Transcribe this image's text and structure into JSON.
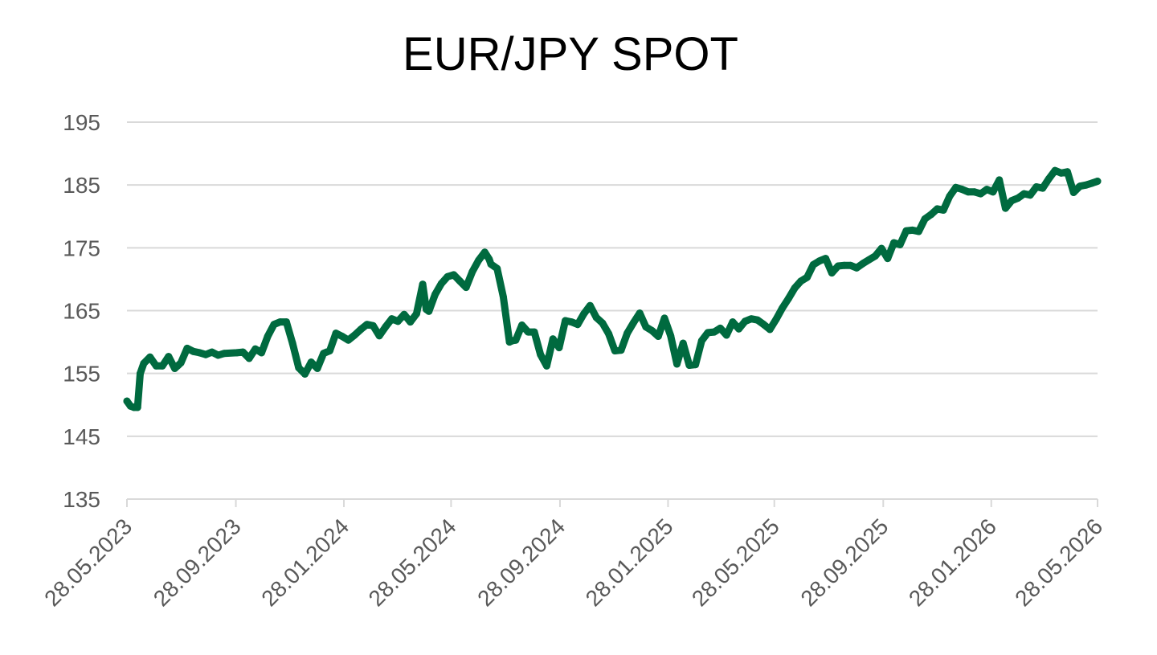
{
  "chart_data": {
    "type": "line",
    "title": "EUR/JPY SPOT",
    "xlabel": "",
    "ylabel": "",
    "ylim": [
      135,
      195
    ],
    "y_ticks": [
      "195",
      "185",
      "175",
      "165",
      "155",
      "145",
      "135"
    ],
    "x_ticks": [
      "28.05.2023",
      "28.09.2023",
      "28.01.2024",
      "28.05.2024",
      "28.09.2024",
      "28.01.2025",
      "28.05.2025",
      "28.09.2025",
      "28.01.2026",
      "28.05.2026"
    ],
    "grid": true,
    "legend": "none",
    "line_color": "#006a3f",
    "series": [
      {
        "x": [
          "2023-05-28",
          "2023-06-01",
          "2023-06-05",
          "2023-06-09",
          "2023-06-12",
          "2023-06-16",
          "2023-06-23",
          "2023-06-30",
          "2023-07-07",
          "2023-07-14",
          "2023-07-21",
          "2023-07-25",
          "2023-07-28",
          "2023-08-04",
          "2023-08-11",
          "2023-08-18",
          "2023-08-25",
          "2023-09-01",
          "2023-09-08",
          "2023-09-15",
          "2023-09-29",
          "2023-10-06",
          "2023-10-13",
          "2023-10-20",
          "2023-10-27",
          "2023-11-03",
          "2023-11-10",
          "2023-11-17",
          "2023-11-24",
          "2023-12-01",
          "2023-12-08",
          "2023-12-15",
          "2023-12-22",
          "2023-12-29",
          "2024-01-05",
          "2024-01-12",
          "2024-01-19",
          "2024-01-26",
          "2024-02-02",
          "2024-02-09",
          "2024-02-16",
          "2024-02-23",
          "2024-03-01",
          "2024-03-08",
          "2024-03-15",
          "2024-03-22",
          "2024-03-29",
          "2024-04-05",
          "2024-04-12",
          "2024-04-19",
          "2024-04-26",
          "2024-04-30",
          "2024-05-03",
          "2024-05-10",
          "2024-05-17",
          "2024-05-24",
          "2024-05-31",
          "2024-06-07",
          "2024-06-14",
          "2024-06-21",
          "2024-06-28",
          "2024-07-05",
          "2024-07-10",
          "2024-07-12",
          "2024-07-19",
          "2024-07-26",
          "2024-08-02",
          "2024-08-05",
          "2024-08-09",
          "2024-08-16",
          "2024-08-23",
          "2024-08-30",
          "2024-09-06",
          "2024-09-13",
          "2024-09-20",
          "2024-09-27",
          "2024-10-04",
          "2024-10-11",
          "2024-10-18",
          "2024-10-25",
          "2024-11-01",
          "2024-11-08",
          "2024-11-15",
          "2024-11-22",
          "2024-11-29",
          "2024-12-06",
          "2024-12-13",
          "2024-12-20",
          "2024-12-27",
          "2025-01-03",
          "2025-01-10",
          "2025-01-17",
          "2025-01-24",
          "2025-01-31",
          "2025-02-07",
          "2025-02-14",
          "2025-02-21",
          "2025-02-28",
          "2025-03-07",
          "2025-03-14",
          "2025-03-21",
          "2025-03-28",
          "2025-04-04",
          "2025-04-11",
          "2025-04-18",
          "2025-04-25",
          "2025-05-02",
          "2025-05-09",
          "2025-05-16",
          "2025-05-23",
          "2025-05-30",
          "2025-06-06",
          "2025-06-13",
          "2025-06-20",
          "2025-06-27",
          "2025-07-04",
          "2025-07-11",
          "2025-07-18",
          "2025-07-25",
          "2025-08-01",
          "2025-08-08",
          "2025-08-15",
          "2025-08-22",
          "2025-08-29",
          "2025-09-05",
          "2025-09-12",
          "2025-09-19",
          "2025-09-26",
          "2025-10-03",
          "2025-10-10",
          "2025-10-17",
          "2025-10-24",
          "2025-10-31",
          "2025-11-07",
          "2025-11-14",
          "2025-11-21",
          "2025-11-28",
          "2025-12-05",
          "2025-12-12",
          "2025-12-19",
          "2025-12-26",
          "2026-01-02",
          "2026-01-09",
          "2026-01-16",
          "2026-01-23",
          "2026-01-30",
          "2026-02-06",
          "2026-02-13",
          "2026-02-20",
          "2026-02-27",
          "2026-03-06",
          "2026-03-13",
          "2026-03-20",
          "2026-03-27",
          "2026-04-03",
          "2026-04-10",
          "2026-04-17",
          "2026-04-24",
          "2026-05-01",
          "2026-05-08",
          "2026-05-15",
          "2026-05-22",
          "2026-05-28"
        ],
        "y": [
          150.6,
          149.8,
          149.6,
          149.6,
          155.0,
          156.6,
          157.6,
          156.2,
          156.2,
          157.7,
          155.8,
          156.3,
          156.7,
          159.0,
          158.5,
          158.3,
          158.0,
          158.4,
          157.9,
          158.2,
          158.3,
          158.4,
          157.4,
          158.9,
          158.3,
          160.9,
          162.8,
          163.2,
          163.2,
          159.8,
          155.9,
          154.9,
          156.8,
          155.8,
          158.2,
          158.6,
          161.4,
          160.9,
          160.3,
          161.1,
          162.0,
          162.8,
          162.6,
          161.0,
          162.4,
          163.7,
          163.3,
          164.4,
          163.2,
          164.5,
          169.2,
          165.2,
          164.9,
          167.6,
          169.3,
          170.4,
          170.7,
          169.7,
          168.7,
          171.2,
          173.0,
          174.3,
          173.2,
          172.4,
          171.7,
          167.2,
          160.0,
          160.2,
          160.3,
          162.7,
          161.6,
          161.6,
          158.0,
          156.2,
          160.5,
          159.1,
          163.4,
          163.2,
          162.8,
          164.5,
          165.8,
          163.9,
          163.0,
          161.3,
          158.6,
          158.7,
          161.4,
          163.1,
          164.6,
          162.4,
          161.8,
          160.9,
          163.8,
          161.0,
          156.5,
          159.8,
          156.3,
          156.4,
          160.2,
          161.5,
          161.6,
          162.2,
          161.1,
          163.2,
          162.1,
          163.3,
          163.7,
          163.5,
          162.8,
          162.0,
          163.6,
          165.4,
          166.9,
          168.6,
          169.7,
          170.3,
          172.3,
          172.9,
          173.3,
          171.0,
          172.1,
          172.2,
          172.2,
          171.8,
          172.5,
          173.1,
          173.7,
          174.9,
          173.3,
          175.8,
          175.5,
          177.7,
          177.8,
          177.6,
          179.6,
          180.3,
          181.2,
          181.0,
          183.2,
          184.6,
          184.3,
          183.9,
          183.9,
          183.6,
          184.3,
          183.9,
          185.8,
          181.3,
          182.5,
          182.9,
          183.6,
          183.4,
          184.7,
          184.5,
          186.0,
          187.3,
          186.9,
          187.1,
          183.8,
          184.8,
          185.0,
          185.3,
          185.6
        ]
      }
    ]
  }
}
